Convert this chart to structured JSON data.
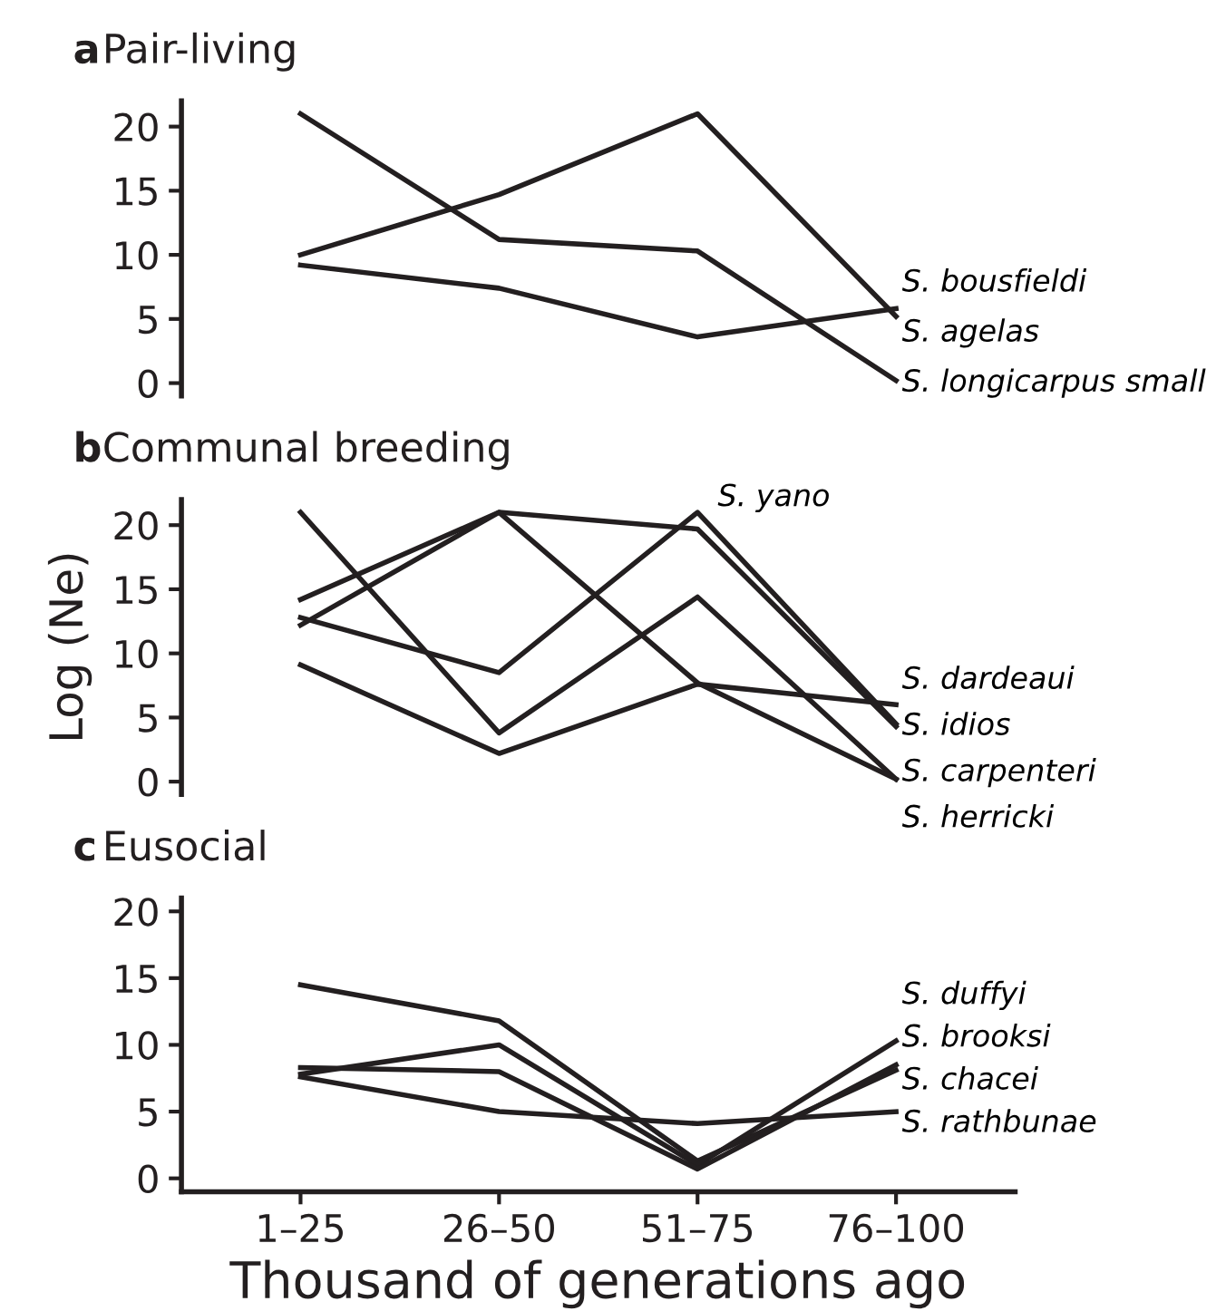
{
  "chart_data": [
    {
      "type": "line",
      "title": "a Pair-living",
      "categories": [
        "1–25",
        "26–50",
        "51–75",
        "76–100"
      ],
      "ylim": [
        -1,
        22
      ],
      "yticks": [
        0,
        5,
        10,
        15,
        20
      ],
      "tick_labels": "y",
      "grid": false,
      "legend": false,
      "series": [
        {
          "color": "#231f20",
          "values": [
            21,
            11.2,
            10.3,
            0.2
          ]
        },
        {
          "color": "#231f20",
          "values": [
            10,
            14.7,
            21,
            5.2
          ]
        },
        {
          "color": "#231f20",
          "values": [
            9.2,
            7.4,
            3.6,
            5.8
          ]
        }
      ],
      "annotations": [
        "S. bousfieldi",
        "S. agelas",
        "S. longicarpus small"
      ]
    },
    {
      "type": "line",
      "title": "b Communal breeding",
      "ylabel": "Log (Ne)",
      "categories": [
        "1–25",
        "26–50",
        "51–75",
        "76–100"
      ],
      "ylim": [
        -1,
        22
      ],
      "yticks": [
        0,
        5,
        10,
        15,
        20
      ],
      "tick_labels": "y",
      "grid": false,
      "legend": false,
      "series": [
        {
          "color": "#231f20",
          "values": [
            21,
            3.8,
            14.4,
            0.2
          ]
        },
        {
          "color": "#231f20",
          "values": [
            14.2,
            21,
            19.7,
            4.3
          ]
        },
        {
          "color": "#231f20",
          "values": [
            12.2,
            21,
            7.7,
            0.2
          ]
        },
        {
          "color": "#231f20",
          "values": [
            9.1,
            2.2,
            7.6,
            6.0
          ]
        },
        {
          "color": "#231f20",
          "values": [
            12.8,
            8.5,
            21,
            4.5
          ]
        }
      ],
      "annotations": [
        {
          "text": "S. yano",
          "x": "51–75",
          "y": 21
        },
        "S. dardeaui",
        "S. idios",
        "S. carpenteri",
        "S. herricki"
      ]
    },
    {
      "type": "line",
      "title": "c Eusocial",
      "xlabel": "Thousand of generations ago",
      "categories": [
        "1–25",
        "26–50",
        "51–75",
        "76–100"
      ],
      "ylim": [
        -1,
        21
      ],
      "yticks": [
        0,
        5,
        10,
        15,
        20
      ],
      "grid": false,
      "legend": false,
      "series": [
        {
          "color": "#231f20",
          "values": [
            14.5,
            11.8,
            1.3,
            8.1
          ]
        },
        {
          "color": "#231f20",
          "values": [
            7.8,
            10,
            1.0,
            10.3
          ]
        },
        {
          "color": "#231f20",
          "values": [
            8.3,
            8.0,
            0.7,
            8.5
          ]
        },
        {
          "color": "#231f20",
          "values": [
            7.6,
            5.0,
            4.1,
            5.0
          ]
        }
      ],
      "annotations": [
        "S. duffyi",
        "S. brooksi",
        "S. chacei",
        "S. rathbunae"
      ]
    }
  ]
}
